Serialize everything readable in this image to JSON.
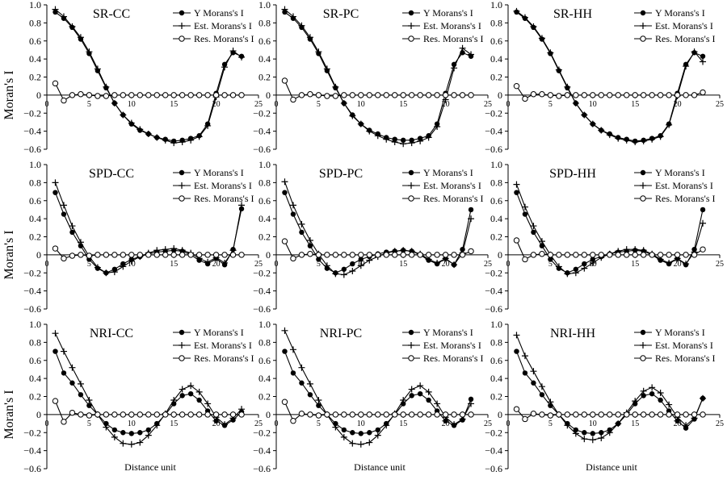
{
  "figure": {
    "ylabel": "Moran's I",
    "xlabel": "Distance unit"
  },
  "legend": {
    "y": "Y Morans's I",
    "est": "Est. Morans's I",
    "res": "Res. Morans's I"
  },
  "chart_data": [
    {
      "type": "line",
      "title": "SR-CC",
      "row": 0,
      "col": 0,
      "x": [
        1,
        2,
        3,
        4,
        5,
        6,
        7,
        8,
        9,
        10,
        11,
        12,
        13,
        14,
        15,
        16,
        17,
        18,
        19,
        20,
        21,
        22,
        23
      ],
      "ylim": [
        -0.6,
        1
      ],
      "xlim": [
        0,
        25
      ],
      "series": [
        {
          "name": "Y Morans's I",
          "marker": "dot",
          "values": [
            0.92,
            0.85,
            0.75,
            0.62,
            0.46,
            0.27,
            0.08,
            -0.09,
            -0.22,
            -0.32,
            -0.39,
            -0.43,
            -0.47,
            -0.49,
            -0.51,
            -0.5,
            -0.48,
            -0.45,
            -0.32,
            0.02,
            0.34,
            0.47,
            0.43
          ]
        },
        {
          "name": "Est. Morans's I",
          "marker": "plus",
          "values": [
            0.95,
            0.87,
            0.76,
            0.64,
            0.48,
            0.29,
            0.09,
            -0.09,
            -0.22,
            -0.31,
            -0.38,
            -0.43,
            -0.47,
            -0.5,
            -0.53,
            -0.52,
            -0.5,
            -0.46,
            -0.34,
            -0.02,
            0.31,
            0.49,
            0.42
          ]
        },
        {
          "name": "Res. Morans's I",
          "marker": "circle",
          "values": [
            0.13,
            -0.06,
            0.0,
            0.01,
            0.0,
            -0.01,
            -0.01,
            0.0,
            0.0,
            0.0,
            0.0,
            0.0,
            0.0,
            0.0,
            0.0,
            0.0,
            0.0,
            0.0,
            0.0,
            0.0,
            0.0,
            0.0,
            0.0
          ]
        }
      ]
    },
    {
      "type": "line",
      "title": "SR-PC",
      "row": 0,
      "col": 1,
      "x": [
        1,
        2,
        3,
        4,
        5,
        6,
        7,
        8,
        9,
        10,
        11,
        12,
        13,
        14,
        15,
        16,
        17,
        18,
        19,
        20,
        21,
        22,
        23
      ],
      "ylim": [
        -0.6,
        1
      ],
      "xlim": [
        0,
        25
      ],
      "series": [
        {
          "name": "Y Morans's I",
          "marker": "dot",
          "values": [
            0.92,
            0.85,
            0.75,
            0.62,
            0.46,
            0.27,
            0.08,
            -0.09,
            -0.22,
            -0.32,
            -0.39,
            -0.43,
            -0.47,
            -0.49,
            -0.5,
            -0.5,
            -0.48,
            -0.45,
            -0.32,
            0.02,
            0.34,
            0.47,
            0.43
          ]
        },
        {
          "name": "Est. Morans's I",
          "marker": "plus",
          "values": [
            0.95,
            0.87,
            0.77,
            0.64,
            0.48,
            0.29,
            0.09,
            -0.09,
            -0.23,
            -0.32,
            -0.4,
            -0.45,
            -0.49,
            -0.52,
            -0.54,
            -0.53,
            -0.51,
            -0.47,
            -0.35,
            -0.05,
            0.3,
            0.52,
            0.45
          ]
        },
        {
          "name": "Res. Morans's I",
          "marker": "circle",
          "values": [
            0.16,
            -0.05,
            0.0,
            0.01,
            0.0,
            -0.01,
            -0.01,
            0.0,
            0.0,
            0.0,
            0.0,
            0.0,
            0.0,
            0.0,
            0.0,
            0.0,
            0.0,
            0.0,
            0.0,
            0.0,
            0.0,
            0.0,
            0.0
          ]
        }
      ]
    },
    {
      "type": "line",
      "title": "SR-HH",
      "row": 0,
      "col": 2,
      "x": [
        1,
        2,
        3,
        4,
        5,
        6,
        7,
        8,
        9,
        10,
        11,
        12,
        13,
        14,
        15,
        16,
        17,
        18,
        19,
        20,
        21,
        22,
        23
      ],
      "ylim": [
        -0.6,
        1
      ],
      "xlim": [
        0,
        25
      ],
      "series": [
        {
          "name": "Y Morans's I",
          "marker": "dot",
          "values": [
            0.92,
            0.85,
            0.75,
            0.62,
            0.46,
            0.27,
            0.08,
            -0.09,
            -0.22,
            -0.32,
            -0.39,
            -0.43,
            -0.47,
            -0.49,
            -0.51,
            -0.5,
            -0.48,
            -0.45,
            -0.32,
            0.02,
            0.34,
            0.47,
            0.43
          ]
        },
        {
          "name": "Est. Morans's I",
          "marker": "plus",
          "values": [
            0.93,
            0.86,
            0.76,
            0.63,
            0.47,
            0.28,
            0.09,
            -0.09,
            -0.22,
            -0.32,
            -0.39,
            -0.44,
            -0.48,
            -0.5,
            -0.52,
            -0.51,
            -0.49,
            -0.46,
            -0.33,
            -0.01,
            0.32,
            0.48,
            0.37
          ]
        },
        {
          "name": "Res. Morans's I",
          "marker": "circle",
          "values": [
            0.1,
            -0.04,
            0.01,
            0.01,
            0.0,
            -0.01,
            0.0,
            0.0,
            0.0,
            0.0,
            0.0,
            0.0,
            0.0,
            0.0,
            0.0,
            0.0,
            0.0,
            0.0,
            0.0,
            0.0,
            0.0,
            0.0,
            0.03
          ]
        }
      ]
    },
    {
      "type": "line",
      "title": "SPD-CC",
      "row": 1,
      "col": 0,
      "x": [
        1,
        2,
        3,
        4,
        5,
        6,
        7,
        8,
        9,
        10,
        11,
        12,
        13,
        14,
        15,
        16,
        17,
        18,
        19,
        20,
        21,
        22,
        23
      ],
      "ylim": [
        -0.6,
        1
      ],
      "xlim": [
        0,
        25
      ],
      "series": [
        {
          "name": "Y Morans's I",
          "marker": "dot",
          "values": [
            0.69,
            0.45,
            0.25,
            0.1,
            -0.05,
            -0.15,
            -0.2,
            -0.16,
            -0.1,
            -0.05,
            -0.02,
            0.01,
            0.03,
            0.04,
            0.05,
            0.04,
            0.0,
            -0.06,
            -0.1,
            -0.04,
            -0.11,
            0.06,
            0.51
          ]
        },
        {
          "name": "Est. Morans's I",
          "marker": "plus",
          "values": [
            0.8,
            0.55,
            0.32,
            0.14,
            -0.02,
            -0.14,
            -0.2,
            -0.19,
            -0.13,
            -0.07,
            -0.02,
            0.02,
            0.05,
            0.06,
            0.07,
            0.05,
            0.02,
            -0.04,
            -0.08,
            -0.03,
            -0.09,
            0.05,
            0.55
          ]
        },
        {
          "name": "Res. Morans's I",
          "marker": "circle",
          "values": [
            0.07,
            -0.04,
            -0.01,
            0.0,
            -0.01,
            0.0,
            0.0,
            0.0,
            0.0,
            0.0,
            0.0,
            0.0,
            0.0,
            0.0,
            0.0,
            0.0,
            0.0,
            0.0,
            0.0,
            0.0,
            0.0,
            0.0,
            0.0
          ]
        }
      ]
    },
    {
      "type": "line",
      "title": "SPD-PC",
      "row": 1,
      "col": 1,
      "x": [
        1,
        2,
        3,
        4,
        5,
        6,
        7,
        8,
        9,
        10,
        11,
        12,
        13,
        14,
        15,
        16,
        17,
        18,
        19,
        20,
        21,
        22,
        23
      ],
      "ylim": [
        -0.6,
        1
      ],
      "xlim": [
        0,
        25
      ],
      "series": [
        {
          "name": "Y Morans's I",
          "marker": "dot",
          "values": [
            0.69,
            0.45,
            0.25,
            0.1,
            -0.05,
            -0.15,
            -0.2,
            -0.16,
            -0.1,
            -0.05,
            -0.02,
            0.01,
            0.03,
            0.04,
            0.05,
            0.04,
            0.0,
            -0.06,
            -0.1,
            -0.04,
            -0.11,
            0.06,
            0.5
          ]
        },
        {
          "name": "Est. Morans's I",
          "marker": "plus",
          "values": [
            0.81,
            0.55,
            0.34,
            0.16,
            0.01,
            -0.12,
            -0.21,
            -0.22,
            -0.18,
            -0.12,
            -0.06,
            -0.02,
            0.02,
            0.04,
            0.05,
            0.04,
            0.01,
            -0.05,
            -0.09,
            -0.04,
            -0.11,
            0.02,
            0.4
          ]
        },
        {
          "name": "Res. Morans's I",
          "marker": "circle",
          "values": [
            0.15,
            -0.04,
            0.0,
            0.01,
            0.0,
            0.0,
            0.0,
            0.0,
            0.0,
            0.0,
            0.0,
            0.0,
            0.0,
            0.0,
            0.0,
            0.0,
            0.0,
            0.0,
            0.0,
            0.0,
            0.0,
            0.0,
            0.04
          ]
        }
      ]
    },
    {
      "type": "line",
      "title": "SPD-HH",
      "row": 1,
      "col": 2,
      "x": [
        1,
        2,
        3,
        4,
        5,
        6,
        7,
        8,
        9,
        10,
        11,
        12,
        13,
        14,
        15,
        16,
        17,
        18,
        19,
        20,
        21,
        22,
        23
      ],
      "ylim": [
        -0.6,
        1
      ],
      "xlim": [
        0,
        25
      ],
      "series": [
        {
          "name": "Y Morans's I",
          "marker": "dot",
          "values": [
            0.69,
            0.45,
            0.25,
            0.1,
            -0.05,
            -0.15,
            -0.2,
            -0.16,
            -0.1,
            -0.05,
            -0.02,
            0.01,
            0.03,
            0.04,
            0.05,
            0.04,
            0.0,
            -0.06,
            -0.1,
            -0.04,
            -0.11,
            0.06,
            0.5
          ]
        },
        {
          "name": "Est. Morans's I",
          "marker": "plus",
          "values": [
            0.78,
            0.53,
            0.32,
            0.15,
            0.0,
            -0.13,
            -0.21,
            -0.2,
            -0.15,
            -0.09,
            -0.03,
            0.01,
            0.04,
            0.06,
            0.06,
            0.05,
            0.01,
            -0.05,
            -0.09,
            -0.04,
            -0.1,
            0.03,
            0.35
          ]
        },
        {
          "name": "Res. Morans's I",
          "marker": "circle",
          "values": [
            0.16,
            -0.05,
            0.0,
            0.01,
            0.0,
            0.0,
            0.0,
            0.0,
            0.0,
            0.0,
            0.0,
            0.0,
            0.0,
            0.0,
            0.0,
            0.0,
            0.0,
            0.0,
            0.0,
            0.0,
            0.0,
            0.0,
            0.06
          ]
        }
      ]
    },
    {
      "type": "line",
      "title": "NRI-CC",
      "row": 2,
      "col": 0,
      "x": [
        1,
        2,
        3,
        4,
        5,
        6,
        7,
        8,
        9,
        10,
        11,
        12,
        13,
        14,
        15,
        16,
        17,
        18,
        19,
        20,
        21,
        22,
        23
      ],
      "ylim": [
        -0.6,
        1
      ],
      "xlim": [
        0,
        25
      ],
      "series": [
        {
          "name": "Y Morans's I",
          "marker": "dot",
          "values": [
            0.7,
            0.46,
            0.35,
            0.22,
            0.1,
            0.0,
            -0.1,
            -0.17,
            -0.2,
            -0.21,
            -0.2,
            -0.17,
            -0.1,
            0.0,
            0.12,
            0.21,
            0.23,
            0.16,
            0.04,
            -0.07,
            -0.12,
            -0.06,
            0.03
          ]
        },
        {
          "name": "Est. Morans's I",
          "marker": "plus",
          "values": [
            0.9,
            0.7,
            0.52,
            0.34,
            0.16,
            0.0,
            -0.14,
            -0.25,
            -0.32,
            -0.33,
            -0.31,
            -0.23,
            -0.12,
            0.01,
            0.16,
            0.28,
            0.32,
            0.25,
            0.12,
            -0.03,
            -0.11,
            -0.04,
            0.06
          ]
        },
        {
          "name": "Res. Morans's I",
          "marker": "circle",
          "values": [
            0.15,
            -0.08,
            0.02,
            0.0,
            -0.01,
            0.0,
            0.0,
            0.0,
            0.0,
            0.0,
            0.0,
            0.0,
            0.0,
            0.0,
            0.0,
            0.0,
            0.0,
            0.0,
            0.0,
            0.0,
            0.0,
            0.0,
            0.0
          ]
        }
      ]
    },
    {
      "type": "line",
      "title": "NRI-PC",
      "row": 2,
      "col": 1,
      "x": [
        1,
        2,
        3,
        4,
        5,
        6,
        7,
        8,
        9,
        10,
        11,
        12,
        13,
        14,
        15,
        16,
        17,
        18,
        19,
        20,
        21,
        22,
        23
      ],
      "ylim": [
        -0.6,
        1
      ],
      "xlim": [
        0,
        25
      ],
      "series": [
        {
          "name": "Y Morans's I",
          "marker": "dot",
          "values": [
            0.7,
            0.46,
            0.35,
            0.22,
            0.1,
            0.0,
            -0.1,
            -0.17,
            -0.2,
            -0.21,
            -0.2,
            -0.17,
            -0.1,
            0.0,
            0.12,
            0.21,
            0.23,
            0.16,
            0.04,
            -0.07,
            -0.12,
            -0.06,
            0.17
          ]
        },
        {
          "name": "Est. Morans's I",
          "marker": "plus",
          "values": [
            0.93,
            0.72,
            0.52,
            0.34,
            0.16,
            0.0,
            -0.14,
            -0.25,
            -0.32,
            -0.33,
            -0.31,
            -0.23,
            -0.12,
            0.01,
            0.16,
            0.28,
            0.32,
            0.25,
            0.12,
            -0.03,
            -0.11,
            -0.05,
            0.12
          ]
        },
        {
          "name": "Res. Morans's I",
          "marker": "circle",
          "values": [
            0.14,
            -0.07,
            0.01,
            0.0,
            -0.01,
            0.0,
            0.0,
            0.0,
            0.0,
            0.0,
            0.0,
            0.0,
            0.0,
            0.0,
            0.0,
            0.0,
            0.0,
            0.0,
            0.0,
            0.0,
            0.0,
            0.0,
            0.0
          ]
        }
      ]
    },
    {
      "type": "line",
      "title": "NRI-HH",
      "row": 2,
      "col": 2,
      "x": [
        1,
        2,
        3,
        4,
        5,
        6,
        7,
        8,
        9,
        10,
        11,
        12,
        13,
        14,
        15,
        16,
        17,
        18,
        19,
        20,
        21,
        22,
        23
      ],
      "ylim": [
        -0.6,
        1
      ],
      "xlim": [
        0,
        25
      ],
      "series": [
        {
          "name": "Y Morans's I",
          "marker": "dot",
          "values": [
            0.7,
            0.46,
            0.35,
            0.22,
            0.1,
            0.0,
            -0.1,
            -0.17,
            -0.2,
            -0.21,
            -0.2,
            -0.17,
            -0.1,
            0.0,
            0.12,
            0.21,
            0.23,
            0.16,
            0.04,
            -0.07,
            -0.15,
            -0.05,
            0.18
          ]
        },
        {
          "name": "Est. Morans's I",
          "marker": "plus",
          "values": [
            0.88,
            0.65,
            0.48,
            0.31,
            0.14,
            0.0,
            -0.12,
            -0.21,
            -0.27,
            -0.28,
            -0.26,
            -0.2,
            -0.1,
            0.02,
            0.15,
            0.26,
            0.3,
            0.24,
            0.11,
            -0.03,
            -0.12,
            -0.04,
            0.18
          ]
        },
        {
          "name": "Res. Morans's I",
          "marker": "circle",
          "values": [
            0.06,
            -0.05,
            0.01,
            0.0,
            -0.01,
            0.0,
            0.0,
            0.0,
            0.0,
            0.0,
            0.0,
            0.0,
            0.0,
            0.0,
            0.0,
            0.0,
            0.0,
            0.0,
            0.0,
            0.0,
            0.0,
            0.0,
            0.0
          ]
        }
      ]
    }
  ]
}
